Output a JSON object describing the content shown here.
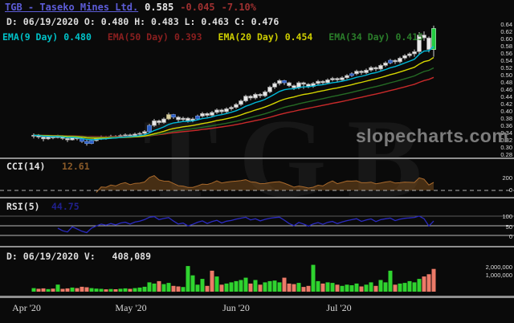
{
  "header": {
    "ticker_link": "TGB - Taseko Mines Ltd.",
    "last_price": "0.585",
    "change": "-0.045",
    "change_pct": "-7.10%",
    "ohlc_line": "D: 06/19/2020 O: 0.480 H: 0.483 L: 0.463 C: 0.476"
  },
  "indicators_row": [
    {
      "label": "EMA(9 Day)",
      "value": "0.480",
      "color": "#00c2c8"
    },
    {
      "label": "EMA(50 Day)",
      "value": "0.393",
      "color": "#8b1f1f"
    },
    {
      "label": "EMA(20 Day)",
      "value": "0.454",
      "color": "#cdcd00"
    },
    {
      "label": "EMA(34 Day)",
      "value": "0.415",
      "color": "#2a7d2a"
    }
  ],
  "watermarks": {
    "site": "slopecharts.com",
    "ticker": "TGB"
  },
  "price_axis": {
    "labels": [
      "0.64",
      "0.62",
      "0.60",
      "0.58",
      "0.56",
      "0.54",
      "0.52",
      "0.50",
      "0.48",
      "0.46",
      "0.44",
      "0.42",
      "0.40",
      "0.38",
      "0.36",
      "0.34",
      "0.32",
      "0.30",
      "0.28"
    ]
  },
  "cci_panel": {
    "label": "CCI(14)",
    "value": "12.61",
    "value_color": "#8a5a28",
    "axis": [
      "200",
      "0"
    ]
  },
  "rsi_panel": {
    "label": "RSI(5)",
    "value": "44.75",
    "value_color": "#20208c",
    "axis": [
      "100",
      "50",
      "0"
    ]
  },
  "volume_panel": {
    "info": "D: 06/19/2020 V:   408,089",
    "axis": [
      "2,000,000",
      "1,000,000"
    ]
  },
  "x_axis": {
    "labels": [
      "Apr '20",
      "May '20",
      "Jun '20",
      "Jul '20"
    ]
  },
  "chart_data": {
    "type": "candlestick",
    "symbol": "TGB",
    "title": "TGB - Taseko Mines Ltd.",
    "price_ylim": [
      0.28,
      0.64
    ],
    "overlays": [
      {
        "name": "EMA(9 Day)",
        "period": 9,
        "color": "#00b8d8"
      },
      {
        "name": "EMA(20 Day)",
        "period": 20,
        "color": "#d6d600"
      },
      {
        "name": "EMA(34 Day)",
        "period": 34,
        "color": "#256b25"
      },
      {
        "name": "EMA(50 Day)",
        "period": 50,
        "color": "#c92a2a"
      }
    ],
    "indicator_panels": [
      {
        "name": "CCI(14)",
        "type": "area",
        "color": "#a8692c",
        "levels": [
          200,
          0
        ]
      },
      {
        "name": "RSI(5)",
        "type": "line",
        "color": "#2a2ac0",
        "levels": [
          100,
          50,
          0
        ]
      }
    ],
    "volume_axis": [
      2000000,
      1000000
    ],
    "candles": {
      "open": [
        0.332,
        0.335,
        0.33,
        0.325,
        0.33,
        0.328,
        0.332,
        0.326,
        0.322,
        0.33,
        0.325,
        0.318,
        0.312,
        0.32,
        0.325,
        0.33,
        0.328,
        0.332,
        0.33,
        0.334,
        0.336,
        0.334,
        0.338,
        0.34,
        0.345,
        0.362,
        0.375,
        0.37,
        0.38,
        0.392,
        0.385,
        0.378,
        0.382,
        0.375,
        0.38,
        0.388,
        0.395,
        0.39,
        0.398,
        0.405,
        0.4,
        0.408,
        0.412,
        0.42,
        0.43,
        0.443,
        0.438,
        0.448,
        0.444,
        0.455,
        0.468,
        0.478,
        0.486,
        0.48,
        0.472,
        0.466,
        0.48,
        0.476,
        0.47,
        0.478,
        0.484,
        0.48,
        0.488,
        0.492,
        0.488,
        0.494,
        0.5,
        0.505,
        0.512,
        0.508,
        0.515,
        0.522,
        0.518,
        0.528,
        0.535,
        0.542,
        0.538,
        0.548,
        0.555,
        0.56,
        0.566,
        0.612,
        0.604,
        0.572
      ],
      "high": [
        0.34,
        0.338,
        0.333,
        0.334,
        0.334,
        0.336,
        0.335,
        0.33,
        0.333,
        0.332,
        0.328,
        0.322,
        0.323,
        0.328,
        0.334,
        0.333,
        0.336,
        0.335,
        0.338,
        0.34,
        0.339,
        0.342,
        0.344,
        0.349,
        0.366,
        0.38,
        0.378,
        0.384,
        0.397,
        0.394,
        0.388,
        0.386,
        0.385,
        0.384,
        0.392,
        0.399,
        0.398,
        0.402,
        0.409,
        0.408,
        0.412,
        0.416,
        0.424,
        0.434,
        0.447,
        0.446,
        0.452,
        0.451,
        0.459,
        0.472,
        0.482,
        0.49,
        0.488,
        0.483,
        0.475,
        0.484,
        0.483,
        0.479,
        0.482,
        0.488,
        0.487,
        0.492,
        0.496,
        0.495,
        0.498,
        0.504,
        0.509,
        0.516,
        0.515,
        0.519,
        0.526,
        0.525,
        0.532,
        0.539,
        0.546,
        0.545,
        0.552,
        0.559,
        0.564,
        0.572,
        0.62,
        0.622,
        0.608,
        0.638
      ],
      "low": [
        0.326,
        0.325,
        0.318,
        0.322,
        0.324,
        0.326,
        0.322,
        0.316,
        0.32,
        0.321,
        0.314,
        0.306,
        0.31,
        0.317,
        0.322,
        0.323,
        0.325,
        0.326,
        0.328,
        0.33,
        0.329,
        0.331,
        0.334,
        0.337,
        0.343,
        0.358,
        0.364,
        0.367,
        0.377,
        0.38,
        0.372,
        0.374,
        0.37,
        0.371,
        0.377,
        0.384,
        0.385,
        0.386,
        0.394,
        0.394,
        0.396,
        0.403,
        0.408,
        0.416,
        0.426,
        0.432,
        0.434,
        0.438,
        0.44,
        0.451,
        0.463,
        0.473,
        0.474,
        0.468,
        0.46,
        0.462,
        0.463,
        0.465,
        0.466,
        0.474,
        0.475,
        0.477,
        0.484,
        0.482,
        0.485,
        0.49,
        0.496,
        0.501,
        0.502,
        0.504,
        0.511,
        0.512,
        0.514,
        0.524,
        0.531,
        0.532,
        0.534,
        0.544,
        0.55,
        0.552,
        0.56,
        0.596,
        0.564,
        0.552
      ],
      "close": [
        0.335,
        0.33,
        0.325,
        0.33,
        0.328,
        0.332,
        0.326,
        0.322,
        0.33,
        0.325,
        0.318,
        0.312,
        0.32,
        0.325,
        0.33,
        0.328,
        0.332,
        0.33,
        0.334,
        0.336,
        0.334,
        0.338,
        0.34,
        0.345,
        0.362,
        0.375,
        0.37,
        0.38,
        0.392,
        0.385,
        0.378,
        0.382,
        0.375,
        0.38,
        0.388,
        0.395,
        0.39,
        0.398,
        0.405,
        0.4,
        0.408,
        0.412,
        0.42,
        0.43,
        0.443,
        0.438,
        0.448,
        0.444,
        0.455,
        0.468,
        0.478,
        0.486,
        0.48,
        0.472,
        0.466,
        0.48,
        0.476,
        0.47,
        0.478,
        0.484,
        0.48,
        0.488,
        0.492,
        0.488,
        0.494,
        0.5,
        0.505,
        0.512,
        0.508,
        0.515,
        0.522,
        0.518,
        0.528,
        0.535,
        0.542,
        0.538,
        0.548,
        0.555,
        0.56,
        0.566,
        0.612,
        0.604,
        0.572,
        0.63
      ],
      "volume_thousands": [
        300,
        250,
        280,
        220,
        260,
        610,
        240,
        280,
        350,
        300,
        420,
        380,
        300,
        260,
        240,
        200,
        230,
        210,
        250,
        280,
        240,
        300,
        350,
        420,
        800,
        700,
        900,
        650,
        750,
        500,
        450,
        400,
        2200,
        1400,
        600,
        1100,
        500,
        1800,
        1300,
        600,
        700,
        800,
        900,
        1000,
        1200,
        700,
        1000,
        600,
        800,
        900,
        950,
        800,
        1200,
        700,
        650,
        750,
        408,
        500,
        2300,
        900,
        700,
        800,
        750,
        600,
        500,
        600,
        550,
        700,
        450,
        600,
        800,
        500,
        1000,
        800,
        1800,
        600,
        700,
        750,
        900,
        800,
        1100,
        1300,
        1500,
        1950
      ],
      "body_colors": "wwwwwwwwwwbbbwwwwwwwwwwwbwwwybwwwwbwwwwwwwwwwwwwwwwwbwwwwwwwwwwwwwbwwwwwwwbwwwwwwwwg"
    },
    "volume_color_overrides": {
      "32": "g",
      "37": "r",
      "83": "r"
    }
  }
}
